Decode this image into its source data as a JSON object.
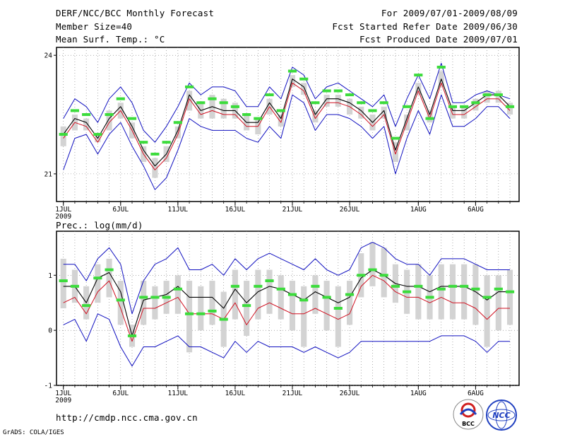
{
  "header": {
    "title": "DERF/NCC/BCC Monthly Forecast",
    "member_size": "Member Size=40",
    "variable": "Mean Surf. Temp.: °C",
    "period": "For 2009/07/01-2009/08/09",
    "start_date": "Fcst Started Refer Date 2009/06/30",
    "produced_date": "Fcst Produced Date 2009/07/01"
  },
  "footer": {
    "url": "http://cmdp.ncc.cma.gov.cn",
    "credit": "GrADS: COLA/IGES",
    "logo_bcc": "BCC",
    "logo_ncc": "NCC"
  },
  "colors": {
    "box": "#d3d3d3",
    "observed": "#3cdc3c",
    "envelope": "#1010c0",
    "member_mean": "#d01020",
    "median": "#000000"
  },
  "chart_data": [
    {
      "type": "line",
      "title": "Mean Surf. Temp.: °C",
      "x": [
        1,
        2,
        3,
        4,
        5,
        6,
        7,
        8,
        9,
        10,
        11,
        12,
        13,
        14,
        15,
        16,
        17,
        18,
        19,
        20,
        21,
        22,
        23,
        24,
        25,
        26,
        27,
        28,
        29,
        30,
        31,
        32,
        33,
        34,
        35,
        36,
        37,
        38,
        39,
        40
      ],
      "x_ticks": [
        1,
        6,
        11,
        16,
        21,
        26,
        32,
        37
      ],
      "x_tick_labels": [
        "1JUL",
        "6JUL",
        "11JUL",
        "16JUL",
        "21JUL",
        "26JUL",
        "1AUG",
        "6AUG"
      ],
      "x_year_label": "2009",
      "xlim": [
        0.4,
        40.8
      ],
      "ylim": [
        20.3,
        24.2
      ],
      "y_ticks": [
        21,
        24
      ],
      "series": [
        {
          "name": "observed",
          "style": "bar-marker",
          "values": [
            22.0,
            22.6,
            22.5,
            22.0,
            22.5,
            22.9,
            22.4,
            21.8,
            21.5,
            21.8,
            22.3,
            23.2,
            22.8,
            22.9,
            22.8,
            22.7,
            22.5,
            22.4,
            23.0,
            22.6,
            23.6,
            23.4,
            22.8,
            23.1,
            23.1,
            23.0,
            22.8,
            22.6,
            22.8,
            21.9,
            22.7,
            23.5,
            22.4,
            23.7,
            22.7,
            22.7,
            22.8,
            23.0,
            23.0,
            22.7
          ]
        },
        {
          "name": "upper",
          "values": [
            22.4,
            22.9,
            22.7,
            22.3,
            22.9,
            23.2,
            22.8,
            22.1,
            21.8,
            22.2,
            22.7,
            23.3,
            23.0,
            23.2,
            23.2,
            23.1,
            22.7,
            22.7,
            23.2,
            22.9,
            23.7,
            23.5,
            22.9,
            23.2,
            23.3,
            23.1,
            22.9,
            22.7,
            23.0,
            22.2,
            22.9,
            23.5,
            22.9,
            23.8,
            22.8,
            22.8,
            23.0,
            23.1,
            23.0,
            22.9
          ]
        },
        {
          "name": "lower",
          "values": [
            21.1,
            21.9,
            22.0,
            21.5,
            22.0,
            22.3,
            21.7,
            21.2,
            20.6,
            20.9,
            21.6,
            22.4,
            22.2,
            22.1,
            22.1,
            22.1,
            21.9,
            21.8,
            22.2,
            21.9,
            23.0,
            22.8,
            22.1,
            22.5,
            22.5,
            22.4,
            22.2,
            21.9,
            22.2,
            21.0,
            21.9,
            22.6,
            22.0,
            23.0,
            22.2,
            22.2,
            22.4,
            22.7,
            22.7,
            22.4
          ]
        },
        {
          "name": "member_mean",
          "values": [
            21.9,
            22.3,
            22.2,
            21.8,
            22.3,
            22.6,
            22.1,
            21.5,
            21.1,
            21.4,
            22.0,
            22.9,
            22.5,
            22.6,
            22.5,
            22.5,
            22.2,
            22.2,
            22.7,
            22.3,
            23.3,
            23.1,
            22.4,
            22.8,
            22.8,
            22.7,
            22.5,
            22.2,
            22.5,
            21.5,
            22.3,
            23.1,
            22.4,
            23.3,
            22.5,
            22.5,
            22.7,
            22.9,
            22.9,
            22.6
          ]
        },
        {
          "name": "median",
          "values": [
            22.0,
            22.4,
            22.3,
            21.9,
            22.4,
            22.7,
            22.2,
            21.6,
            21.2,
            21.5,
            22.1,
            23.0,
            22.6,
            22.7,
            22.6,
            22.6,
            22.3,
            22.3,
            22.8,
            22.4,
            23.4,
            23.2,
            22.5,
            22.9,
            22.9,
            22.8,
            22.6,
            22.3,
            22.6,
            21.6,
            22.4,
            23.2,
            22.5,
            23.4,
            22.6,
            22.6,
            22.8,
            23.0,
            23.0,
            22.7
          ]
        },
        {
          "name": "box_low",
          "values": [
            21.7,
            22.1,
            22.1,
            21.8,
            22.1,
            22.4,
            21.9,
            21.3,
            20.9,
            21.3,
            21.9,
            22.6,
            22.4,
            22.4,
            22.4,
            22.4,
            22.1,
            22.0,
            22.5,
            22.2,
            23.2,
            23.0,
            22.3,
            22.7,
            22.7,
            22.5,
            22.4,
            22.1,
            22.4,
            21.3,
            22.1,
            23.0,
            22.3,
            23.2,
            22.4,
            22.4,
            22.6,
            22.8,
            22.8,
            22.5
          ]
        },
        {
          "name": "box_high",
          "values": [
            22.2,
            22.5,
            22.4,
            22.0,
            22.6,
            22.8,
            22.3,
            21.7,
            21.4,
            21.7,
            22.2,
            23.1,
            22.8,
            23.0,
            22.9,
            22.8,
            22.5,
            22.4,
            22.9,
            22.5,
            23.5,
            23.3,
            22.6,
            23.0,
            23.0,
            22.9,
            22.7,
            22.5,
            22.7,
            21.8,
            22.5,
            23.3,
            22.6,
            23.6,
            22.7,
            22.7,
            22.9,
            23.1,
            23.1,
            22.8
          ]
        }
      ]
    },
    {
      "type": "line",
      "title": "Prec.: log(mm/d)",
      "x": [
        1,
        2,
        3,
        4,
        5,
        6,
        7,
        8,
        9,
        10,
        11,
        12,
        13,
        14,
        15,
        16,
        17,
        18,
        19,
        20,
        21,
        22,
        23,
        24,
        25,
        26,
        27,
        28,
        29,
        30,
        31,
        32,
        33,
        34,
        35,
        36,
        37,
        38,
        39,
        40
      ],
      "x_ticks": [
        1,
        6,
        11,
        16,
        21,
        26,
        32,
        37
      ],
      "x_tick_labels": [
        "1JUL",
        "6JUL",
        "11JUL",
        "16JUL",
        "21JUL",
        "26JUL",
        "1AUG",
        "6AUG"
      ],
      "x_year_label": "2009",
      "xlim": [
        0.4,
        40.8
      ],
      "ylim": [
        -1,
        1.8
      ],
      "y_ticks": [
        -1,
        0,
        1
      ],
      "series": [
        {
          "name": "observed",
          "style": "bar-marker",
          "values": [
            0.9,
            0.8,
            0.45,
            0.95,
            1.1,
            0.55,
            -0.1,
            0.6,
            0.6,
            0.6,
            0.75,
            0.3,
            0.3,
            0.35,
            0.2,
            0.8,
            0.45,
            0.8,
            0.9,
            0.75,
            0.65,
            0.55,
            0.8,
            0.6,
            0.4,
            0.65,
            1.0,
            1.1,
            1.0,
            0.8,
            0.7,
            0.8,
            0.6,
            0.75,
            0.8,
            0.8,
            0.75,
            0.6,
            0.75,
            0.7
          ]
        },
        {
          "name": "upper",
          "values": [
            1.2,
            1.2,
            0.9,
            1.3,
            1.5,
            1.2,
            0.3,
            0.9,
            1.2,
            1.3,
            1.5,
            1.1,
            1.1,
            1.2,
            1.0,
            1.3,
            1.1,
            1.3,
            1.4,
            1.3,
            1.2,
            1.1,
            1.3,
            1.1,
            1.0,
            1.1,
            1.5,
            1.6,
            1.5,
            1.3,
            1.2,
            1.2,
            1.0,
            1.3,
            1.3,
            1.3,
            1.2,
            1.1,
            1.1,
            1.1
          ]
        },
        {
          "name": "lower",
          "values": [
            0.1,
            0.2,
            -0.2,
            0.3,
            0.2,
            -0.3,
            -0.65,
            -0.3,
            -0.3,
            -0.2,
            -0.1,
            -0.3,
            -0.3,
            -0.4,
            -0.5,
            -0.2,
            -0.4,
            -0.2,
            -0.3,
            -0.3,
            -0.3,
            -0.4,
            -0.3,
            -0.4,
            -0.5,
            -0.4,
            -0.2,
            -0.2,
            -0.2,
            -0.2,
            -0.2,
            -0.2,
            -0.2,
            -0.1,
            -0.1,
            -0.1,
            -0.2,
            -0.4,
            -0.2,
            -0.2
          ]
        },
        {
          "name": "member_mean",
          "values": [
            0.5,
            0.6,
            0.3,
            0.7,
            0.9,
            0.4,
            -0.2,
            0.4,
            0.4,
            0.5,
            0.6,
            0.3,
            0.3,
            0.3,
            0.2,
            0.5,
            0.1,
            0.4,
            0.5,
            0.4,
            0.3,
            0.3,
            0.4,
            0.3,
            0.2,
            0.3,
            0.8,
            1.0,
            0.9,
            0.7,
            0.6,
            0.6,
            0.5,
            0.6,
            0.5,
            0.5,
            0.4,
            0.2,
            0.4,
            0.4
          ]
        },
        {
          "name": "median",
          "values": [
            0.8,
            0.8,
            0.5,
            0.95,
            1.05,
            0.7,
            -0.1,
            0.55,
            0.6,
            0.65,
            0.8,
            0.6,
            0.6,
            0.6,
            0.4,
            0.75,
            0.5,
            0.7,
            0.8,
            0.75,
            0.65,
            0.55,
            0.7,
            0.6,
            0.5,
            0.6,
            0.95,
            1.1,
            1.0,
            0.85,
            0.8,
            0.8,
            0.7,
            0.8,
            0.8,
            0.8,
            0.7,
            0.55,
            0.7,
            0.7
          ]
        },
        {
          "name": "box_low",
          "values": [
            0.4,
            0.5,
            0.2,
            0.5,
            0.6,
            0.1,
            -0.3,
            0.1,
            0.2,
            0.3,
            0.3,
            -0.4,
            0.0,
            0.1,
            -0.3,
            0.2,
            -0.1,
            0.2,
            0.3,
            0.2,
            0.0,
            -0.3,
            0.3,
            0.0,
            -0.3,
            0.1,
            0.6,
            0.8,
            0.6,
            0.5,
            0.3,
            0.2,
            0.2,
            0.2,
            0.2,
            0.2,
            0.1,
            -0.3,
            0.0,
            0.1
          ]
        },
        {
          "name": "box_high",
          "values": [
            1.3,
            1.1,
            0.8,
            1.2,
            1.3,
            0.9,
            0.1,
            0.9,
            0.8,
            0.9,
            1.0,
            0.9,
            0.8,
            0.9,
            0.7,
            1.1,
            0.9,
            1.1,
            1.1,
            1.0,
            0.9,
            0.8,
            1.0,
            0.9,
            0.8,
            0.9,
            1.4,
            1.6,
            1.5,
            1.2,
            1.1,
            1.2,
            1.0,
            1.2,
            1.2,
            1.2,
            1.2,
            1.0,
            1.0,
            1.1
          ]
        }
      ]
    }
  ]
}
